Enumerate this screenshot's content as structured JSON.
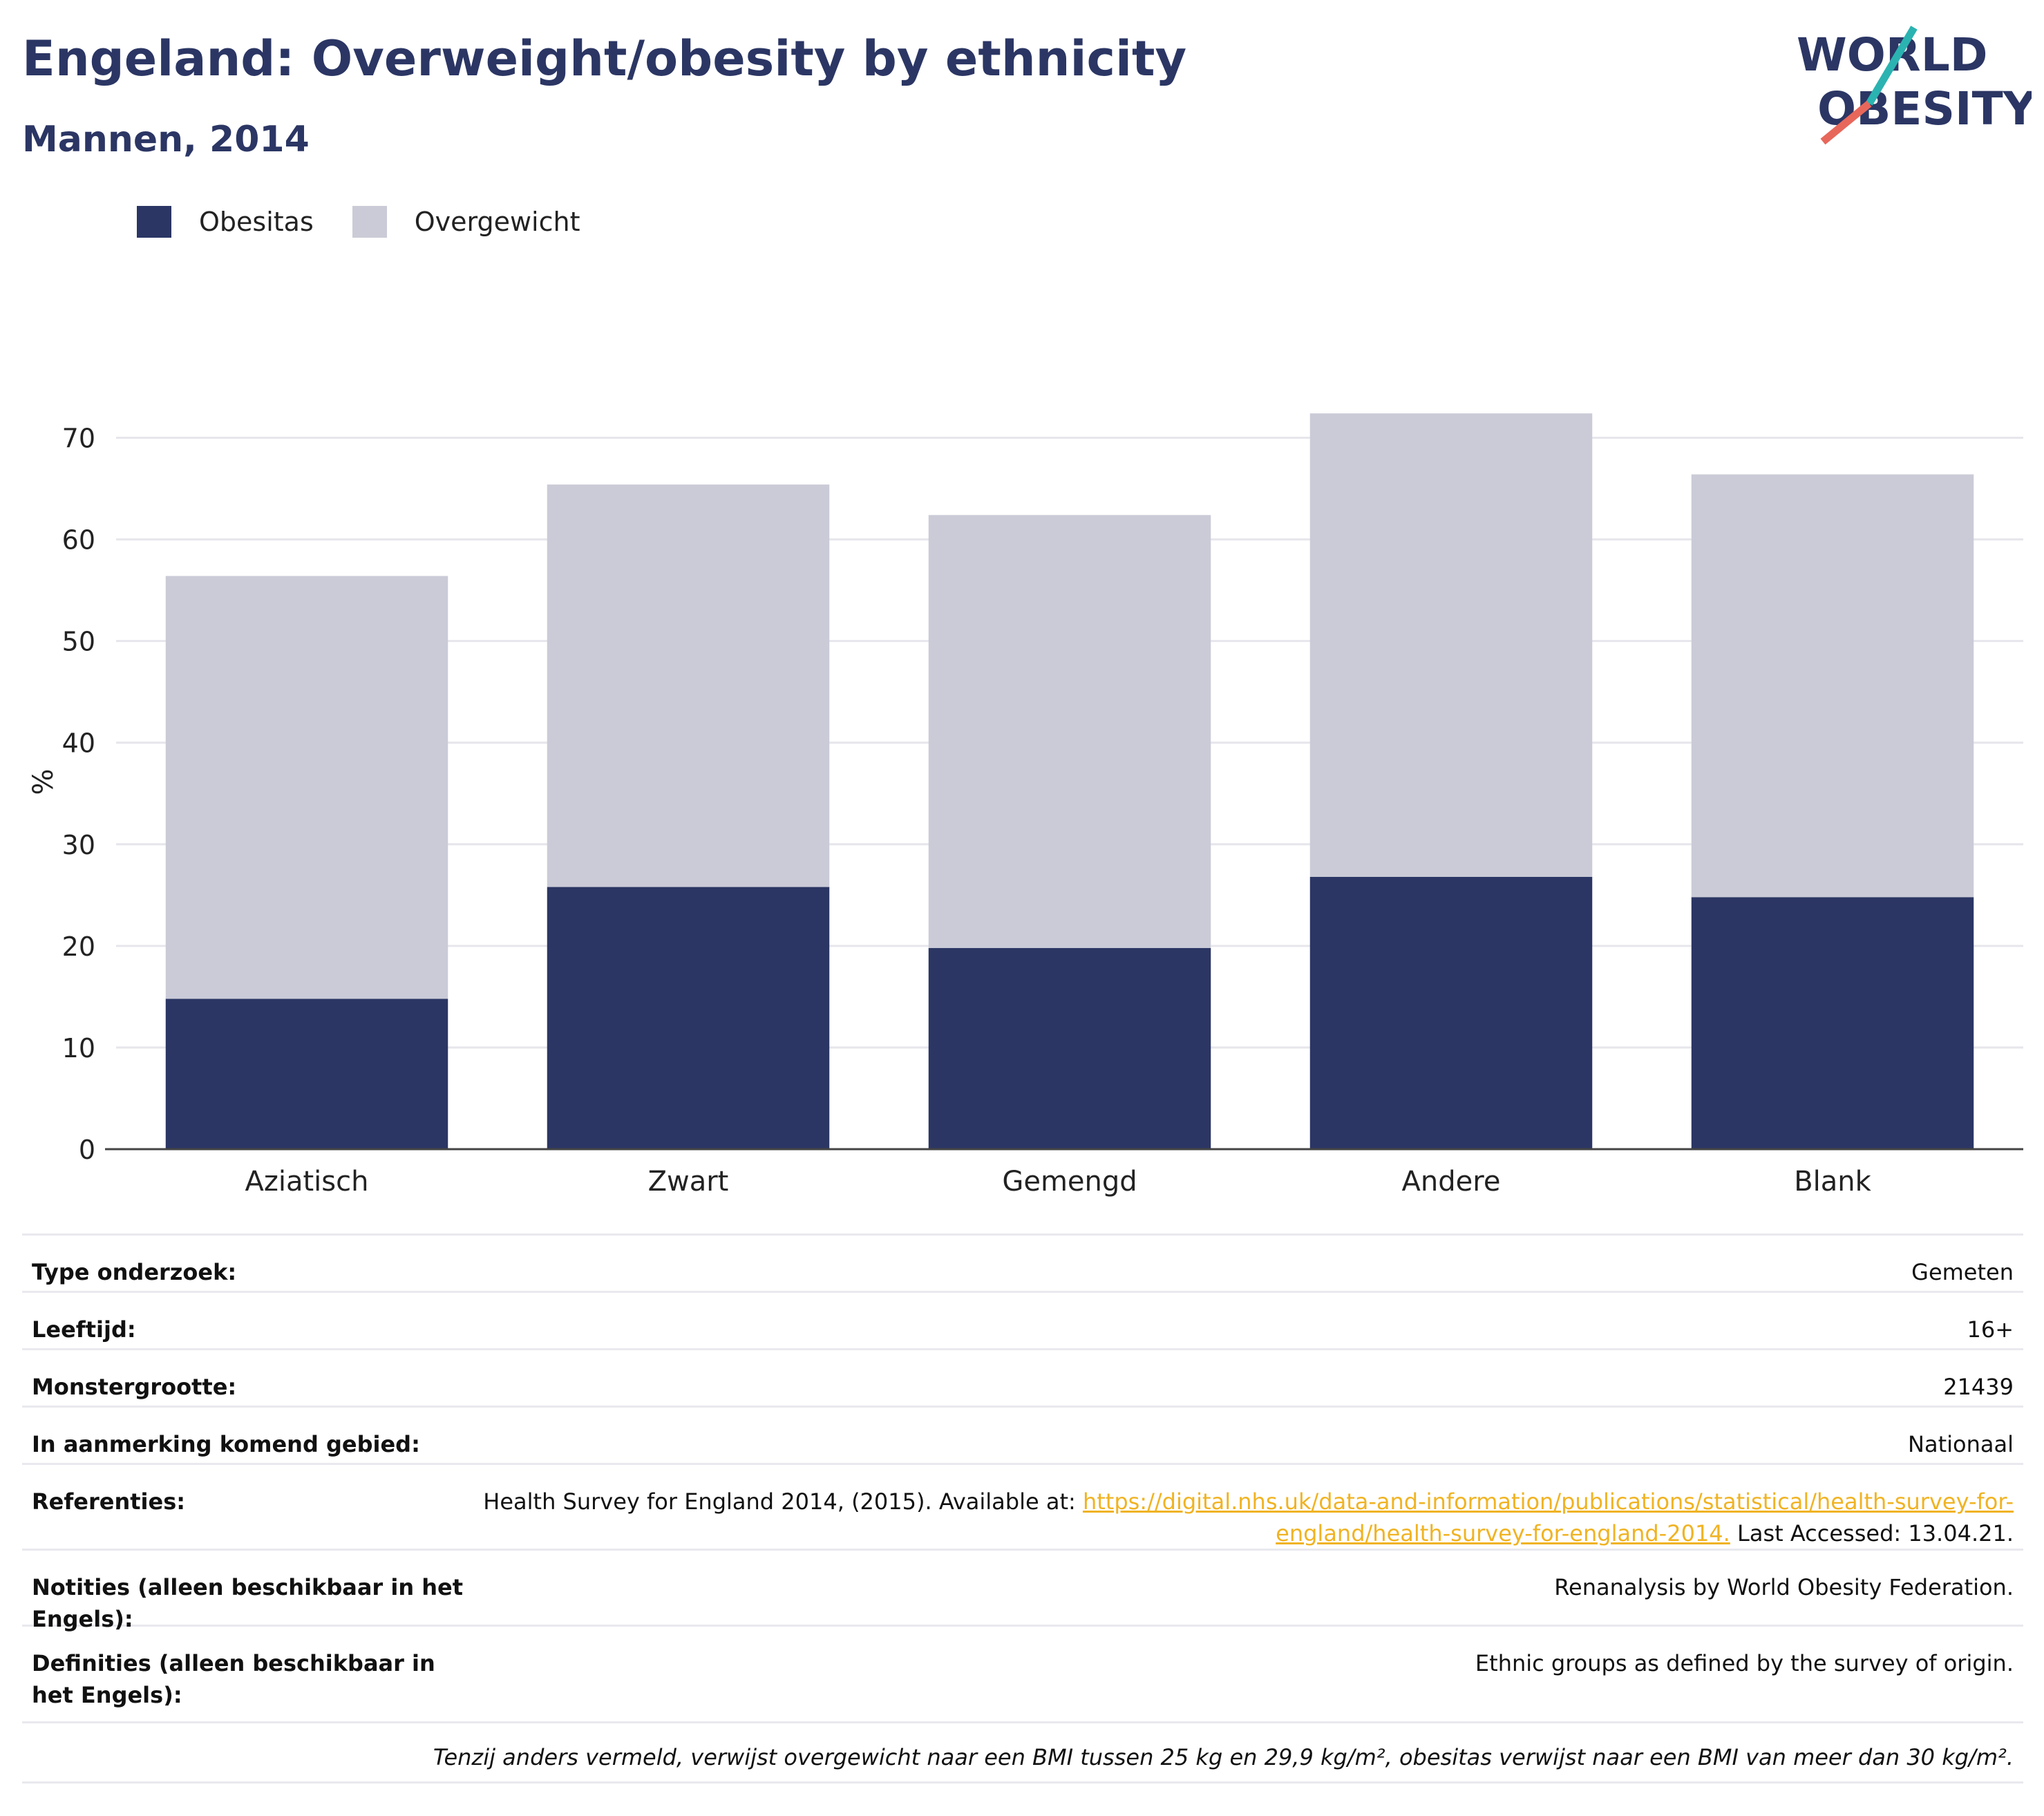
{
  "header": {
    "title": "Engeland: Overweight/obesity by ethnicity",
    "subtitle": "Mannen, 2014"
  },
  "logo": {
    "line1": "WORLD",
    "line2": "OBESITY",
    "accent_teal": "#2bb3b1",
    "accent_coral": "#e8675b"
  },
  "legend": [
    {
      "label": "Obesitas",
      "color": "#2b3664"
    },
    {
      "label": "Overgewicht",
      "color": "#cacbd7"
    }
  ],
  "chart_data": {
    "type": "bar",
    "stacked": true,
    "categories": [
      "Aziatisch",
      "Zwart",
      "Gemengd",
      "Andere",
      "Blank"
    ],
    "series": [
      {
        "name": "Obesitas",
        "values": [
          14.8,
          25.8,
          19.8,
          26.8,
          24.8
        ],
        "color": "#2b3664"
      },
      {
        "name": "Overgewicht",
        "values": [
          41.6,
          39.6,
          42.6,
          45.6,
          41.6
        ],
        "color": "#cacbd7"
      }
    ],
    "ylabel": "%",
    "ylim": [
      0,
      75
    ],
    "yticks": [
      0,
      10,
      20,
      30,
      40,
      50,
      60,
      70
    ],
    "grid": true,
    "legend_position": "top-left"
  },
  "info": {
    "rows": [
      {
        "label": "Type onderzoek:",
        "value": "Gemeten"
      },
      {
        "label": "Leeftijd:",
        "value": "16+"
      },
      {
        "label": "Monstergrootte:",
        "value": "21439"
      },
      {
        "label": "In aanmerking komend gebied:",
        "value": "Nationaal"
      }
    ],
    "references": {
      "label": "Referenties:",
      "prefix": "Health Survey for England 2014, (2015). Available at: ",
      "link": "https://digital.nhs.uk/data-and-information/publications/statistical/health-survey-for-england/health-survey-for-england-2014.",
      "suffix": " Last Accessed: 13.04.21."
    },
    "notes": {
      "label": "Notities (alleen beschikbaar in het Engels):",
      "value": "Renanalysis by World Obesity Federation."
    },
    "definitions": {
      "label": "Definities (alleen beschikbaar in het Engels):",
      "value": "Ethnic groups as defined by the survey of origin."
    },
    "footnote": "Tenzij anders vermeld, verwijst overgewicht naar een BMI tussen 25 kg en 29,9 kg/m², obesitas verwijst naar een BMI van meer dan 30 kg/m²."
  }
}
